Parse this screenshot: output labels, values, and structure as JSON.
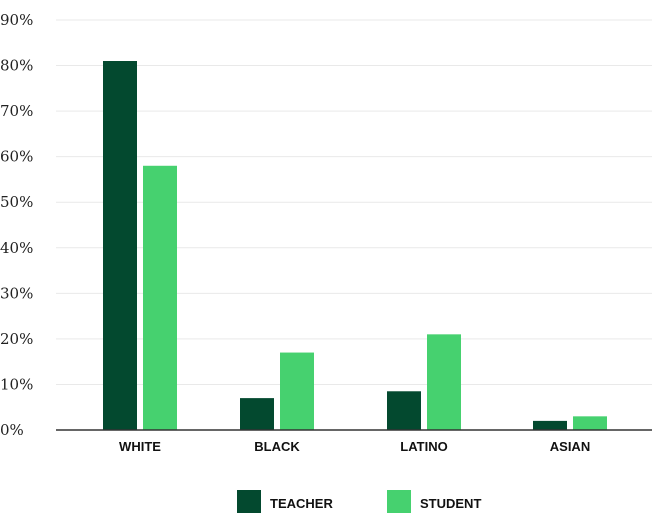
{
  "chart_data": {
    "type": "bar",
    "title": "",
    "xlabel": "",
    "ylabel": "",
    "categories": [
      "WHITE",
      "BLACK",
      "LATINO",
      "ASIAN"
    ],
    "series": [
      {
        "name": "TEACHER",
        "color": "#03492f",
        "values": [
          81,
          7,
          8.5,
          2
        ]
      },
      {
        "name": "STUDENT",
        "color": "#46d16f",
        "values": [
          58,
          17,
          21,
          3
        ]
      }
    ],
    "ylim": [
      0,
      90
    ],
    "yticks": [
      0,
      10,
      20,
      30,
      40,
      50,
      60,
      70,
      80,
      90
    ],
    "ytick_format": "percent",
    "grid": true,
    "legend_position": "bottom-center"
  }
}
